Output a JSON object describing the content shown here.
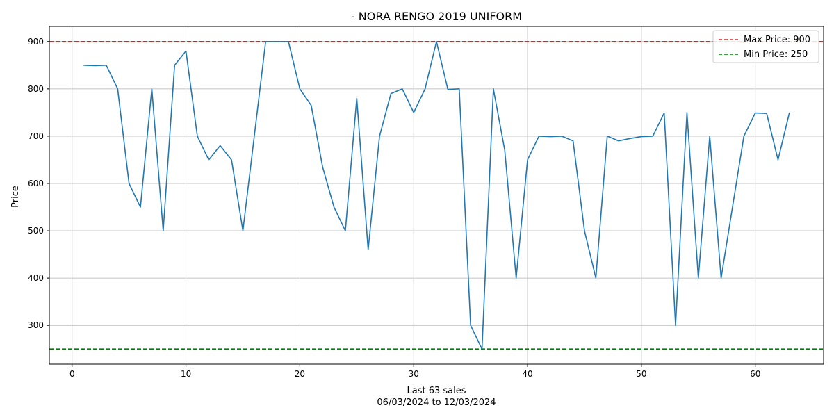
{
  "chart_data": {
    "type": "line",
    "title": "- NORA RENGO 2019 UNIFORM",
    "xlabel": "Last 63 sales",
    "xlabel_sub": "06/03/2024 to 12/03/2024",
    "ylabel": "Price",
    "xlim": [
      -2,
      66
    ],
    "ylim": [
      218,
      932
    ],
    "xticks": [
      0,
      10,
      20,
      30,
      40,
      50,
      60
    ],
    "yticks": [
      300,
      400,
      500,
      600,
      700,
      800,
      900
    ],
    "grid": true,
    "legend_position": "top-right",
    "series": [
      {
        "color": "#1f77b4",
        "x": [
          1,
          2,
          3,
          4,
          5,
          6,
          7,
          8,
          9,
          10,
          11,
          12,
          13,
          14,
          15,
          16,
          17,
          18,
          19,
          20,
          21,
          22,
          23,
          24,
          25,
          26,
          27,
          28,
          29,
          30,
          31,
          32,
          33,
          34,
          35,
          36,
          37,
          38,
          39,
          40,
          41,
          42,
          43,
          44,
          45,
          46,
          47,
          48,
          49,
          50,
          51,
          52,
          53,
          54,
          55,
          56,
          57,
          58,
          59,
          60,
          61,
          62,
          63
        ],
        "values": [
          850,
          849,
          850,
          800,
          600,
          550,
          800,
          500,
          850,
          880,
          700,
          650,
          680,
          650,
          500,
          700,
          900,
          900,
          900,
          800,
          765,
          635,
          550,
          500,
          780,
          460,
          700,
          790,
          800,
          750,
          800,
          900,
          799,
          800,
          300,
          250,
          800,
          670,
          400,
          650,
          700,
          699,
          700,
          690,
          500,
          400,
          700,
          690,
          695,
          699,
          700,
          749,
          300,
          750,
          400,
          700,
          400,
          550,
          700,
          749,
          748,
          650,
          750
        ]
      }
    ],
    "reference_lines": [
      {
        "name": "Max Price: 900",
        "value": 900,
        "color": "#d62728",
        "style": "dashed"
      },
      {
        "name": "Min Price: 250",
        "value": 250,
        "color": "#008000",
        "style": "dashed"
      }
    ]
  }
}
